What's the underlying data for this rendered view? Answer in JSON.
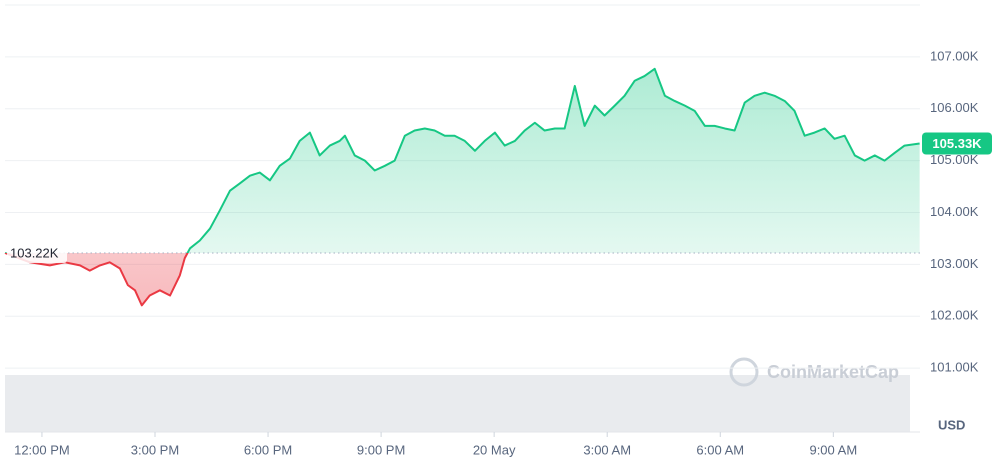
{
  "chart_data": {
    "type": "line",
    "x": [
      -0.98,
      -0.32,
      0.21,
      0.61,
      1.01,
      1.27,
      1.54,
      1.8,
      2.07,
      2.28,
      2.47,
      2.65,
      2.86,
      3.13,
      3.4,
      3.66,
      3.79,
      3.93,
      4.19,
      4.46,
      4.72,
      4.99,
      5.25,
      5.52,
      5.78,
      6.05,
      6.31,
      6.58,
      6.84,
      7.11,
      7.37,
      7.64,
      7.9,
      8.04,
      8.3,
      8.57,
      8.83,
      9.1,
      9.36,
      9.63,
      9.89,
      10.16,
      10.42,
      10.69,
      10.95,
      11.22,
      11.49,
      11.75,
      12.02,
      12.28,
      12.55,
      12.81,
      13.08,
      13.34,
      13.61,
      13.87,
      14.14,
      14.4,
      14.67,
      14.93,
      15.2,
      15.46,
      15.73,
      15.99,
      16.26,
      16.53,
      16.79,
      17.06,
      17.32,
      17.59,
      17.85,
      18.12,
      18.38,
      18.65,
      18.91,
      19.18,
      19.44,
      19.71,
      19.97,
      20.24,
      20.5,
      20.77,
      21.03,
      21.3,
      21.57,
      21.83,
      22.1,
      22.36,
      22.63,
      22.89,
      23.29
    ],
    "values": [
      103.22,
      103.04,
      102.98,
      103.04,
      102.98,
      102.88,
      102.98,
      103.04,
      102.92,
      102.6,
      102.5,
      102.21,
      102.4,
      102.5,
      102.4,
      102.79,
      103.12,
      103.31,
      103.46,
      103.69,
      104.04,
      104.42,
      104.56,
      104.71,
      104.77,
      104.62,
      104.9,
      105.04,
      105.38,
      105.54,
      105.1,
      105.29,
      105.38,
      105.48,
      105.1,
      105.0,
      104.81,
      104.9,
      105.0,
      105.48,
      105.58,
      105.62,
      105.58,
      105.48,
      105.48,
      105.38,
      105.19,
      105.38,
      105.54,
      105.29,
      105.38,
      105.58,
      105.73,
      105.58,
      105.62,
      105.62,
      106.44,
      105.67,
      106.06,
      105.87,
      106.06,
      106.25,
      106.54,
      106.63,
      106.77,
      106.25,
      106.15,
      106.06,
      105.96,
      105.67,
      105.67,
      105.62,
      105.58,
      106.12,
      106.25,
      106.31,
      106.25,
      106.15,
      105.96,
      105.48,
      105.54,
      105.62,
      105.42,
      105.48,
      105.1,
      105.0,
      105.1,
      105.0,
      105.15,
      105.29,
      105.33
    ],
    "xlim": [
      -0.98,
      23.3
    ],
    "xticks": [
      {
        "value": 0,
        "label": "12:00 PM"
      },
      {
        "value": 3,
        "label": "3:00 PM"
      },
      {
        "value": 6,
        "label": "6:00 PM"
      },
      {
        "value": 9,
        "label": "9:00 PM"
      },
      {
        "value": 12,
        "label": "20 May"
      },
      {
        "value": 15,
        "label": "3:00 AM"
      },
      {
        "value": 18,
        "label": "6:00 AM"
      },
      {
        "value": 21,
        "label": "9:00 AM"
      }
    ],
    "ylim": [
      100,
      108
    ],
    "yticks": [
      {
        "value": 101,
        "label": "101.00K"
      },
      {
        "value": 102,
        "label": "102.00K"
      },
      {
        "value": 103,
        "label": "103.00K"
      },
      {
        "value": 104,
        "label": "104.00K"
      },
      {
        "value": 105,
        "label": "105.00K"
      },
      {
        "value": 106,
        "label": "106.00K"
      },
      {
        "value": 107,
        "label": "107.00K"
      }
    ],
    "y_unit": "USD",
    "baseline": {
      "value": 103.22,
      "label": "103.22K"
    },
    "current": {
      "value": 105.33,
      "label": "105.33K"
    },
    "up_color": "#16c784",
    "down_color": "#ea3943",
    "grid": true,
    "watermark": "CoinMarketCap"
  }
}
